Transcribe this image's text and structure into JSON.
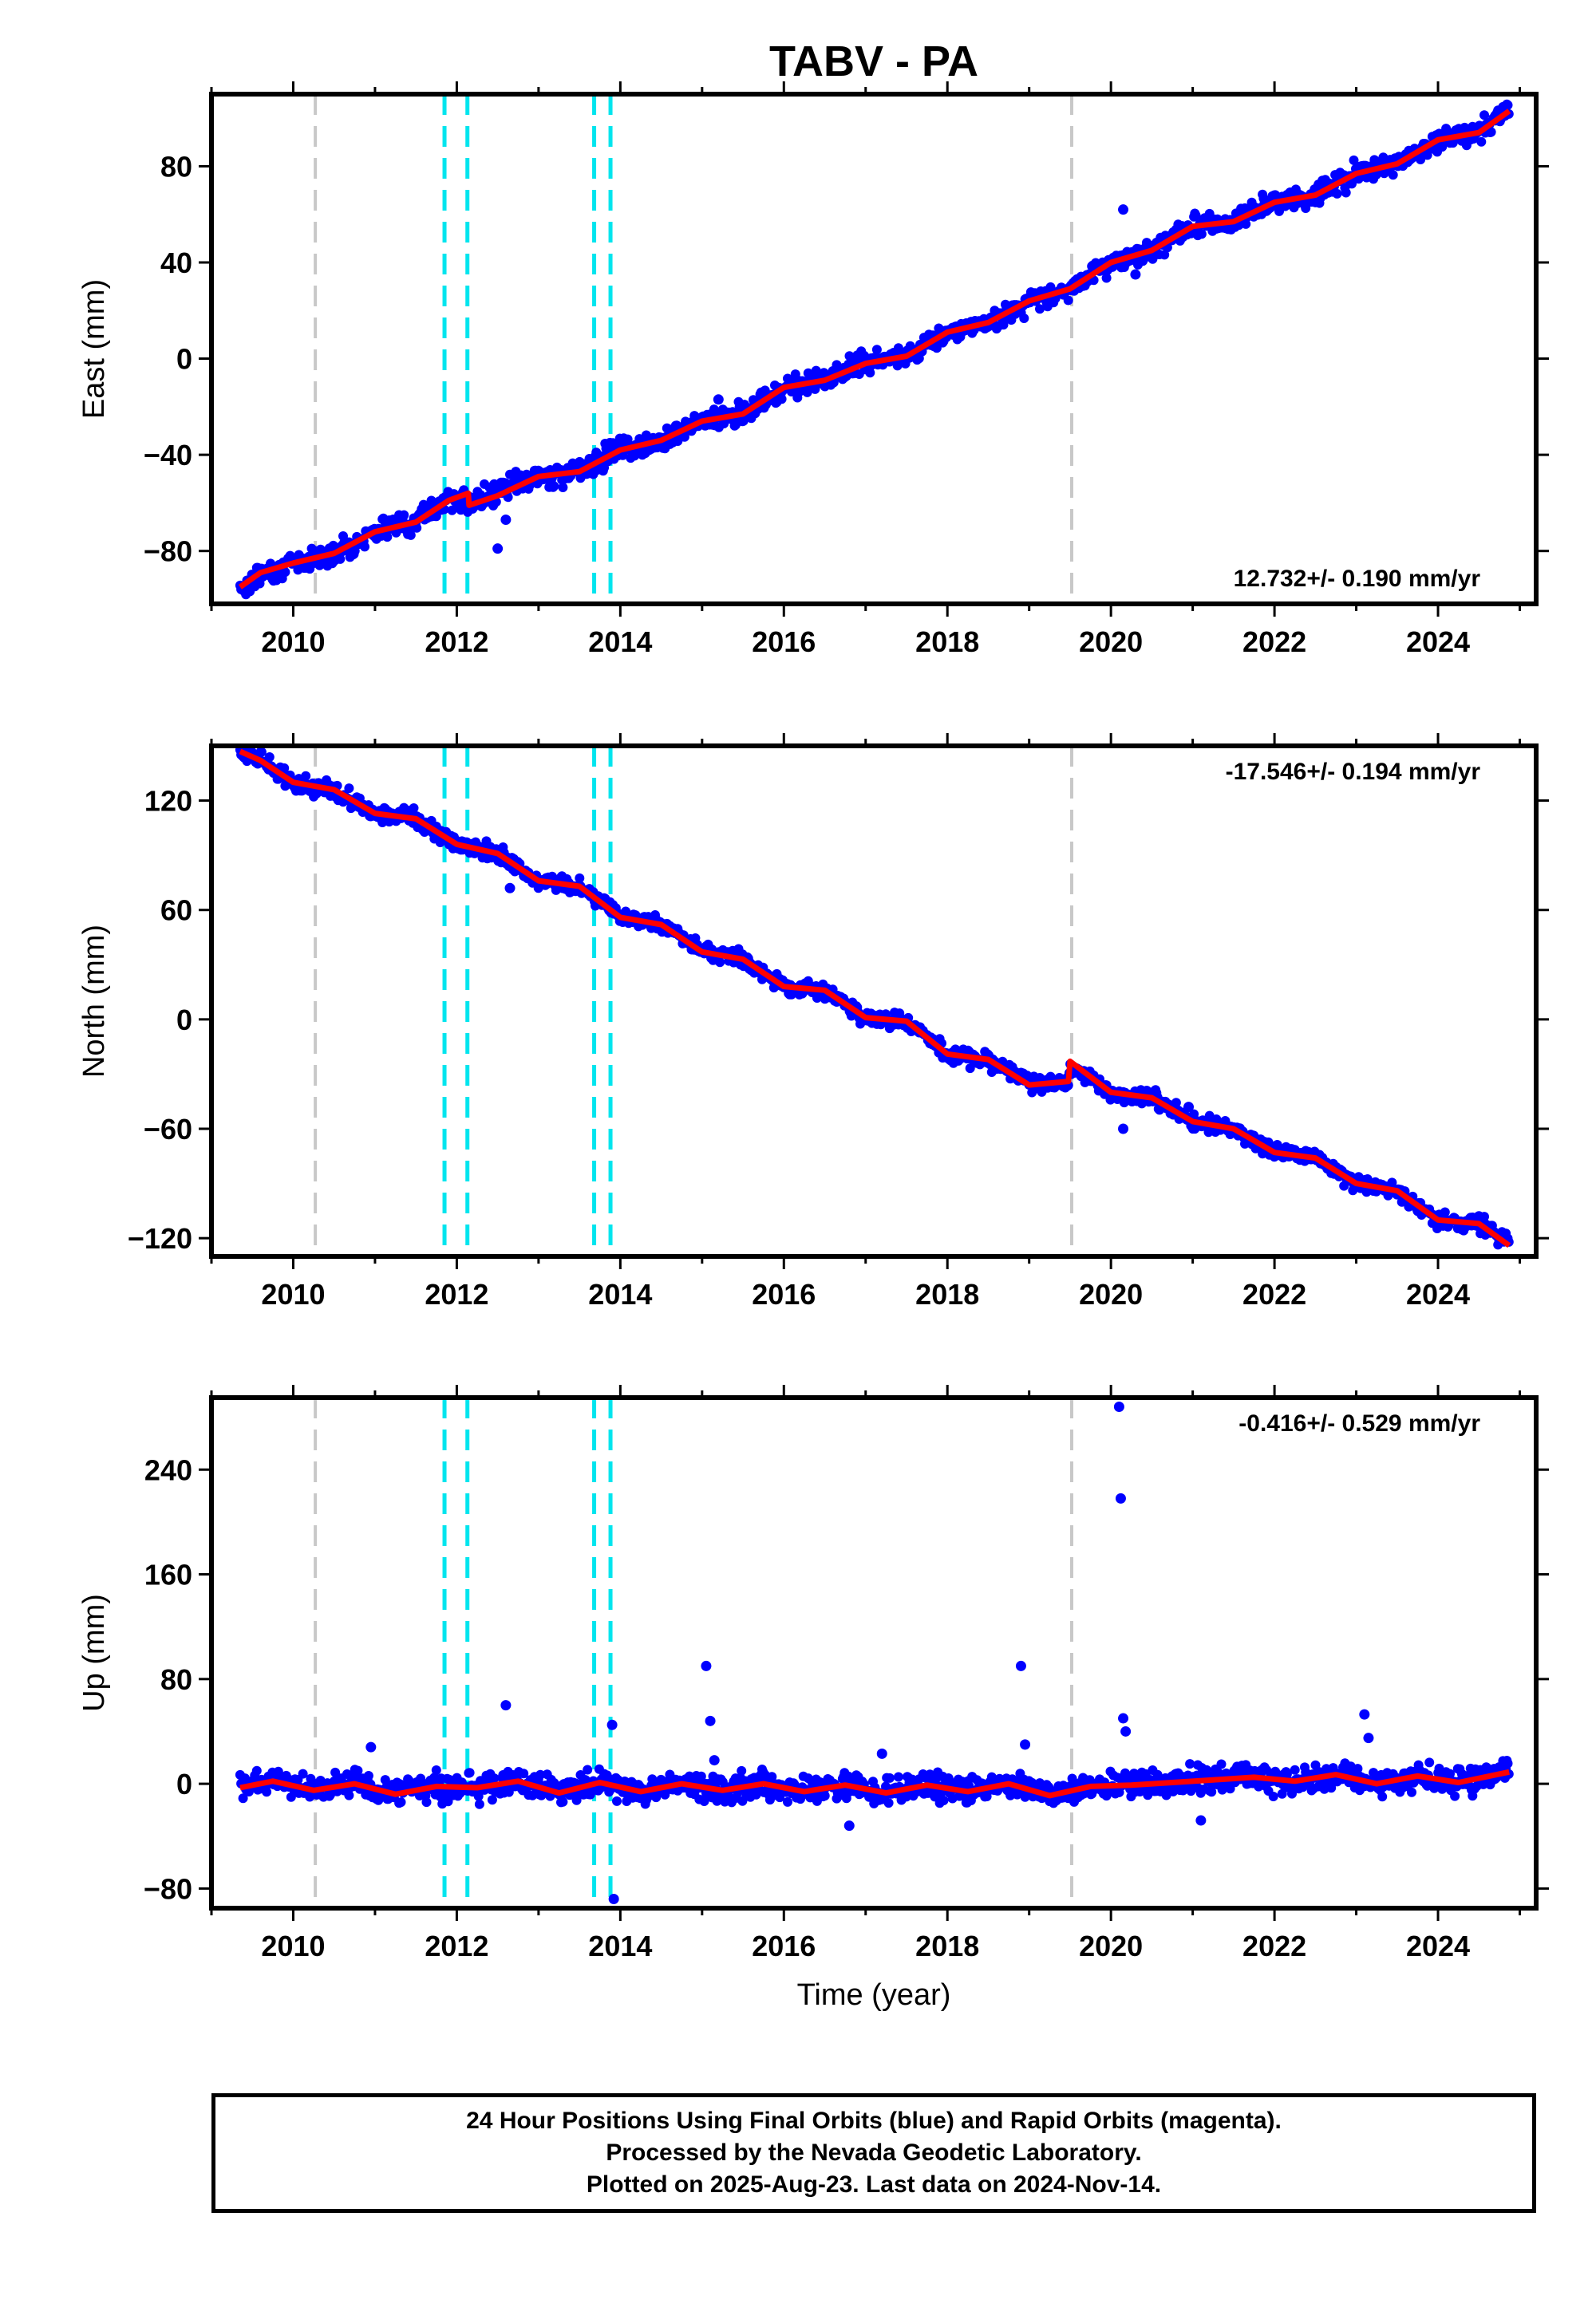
{
  "title": "TABV - PA",
  "xlabel": "Time (year)",
  "chart_data": [
    {
      "type": "scatter",
      "panel": "east",
      "ylabel": "East (mm)",
      "rate_label": "12.732+/- 0.190 mm/yr",
      "rate_position": "bottom-right",
      "xlim": [
        2009.0,
        2025.2
      ],
      "ylim": [
        -102,
        110
      ],
      "xticks": [
        2010,
        2012,
        2014,
        2016,
        2018,
        2020,
        2022,
        2024
      ],
      "yticks": [
        -80,
        -40,
        0,
        40,
        80
      ],
      "ytick_labels": [
        "−80",
        "−40",
        "0",
        "40",
        "80"
      ],
      "series": [
        {
          "role": "daily positions",
          "color": "#0000ff",
          "x": [
            2009.35,
            2009.6,
            2010.0,
            2010.5,
            2011.0,
            2011.5,
            2011.9,
            2012.1,
            2012.5,
            2013.0,
            2013.5,
            2014.0,
            2014.5,
            2015.0,
            2015.5,
            2016.0,
            2016.5,
            2017.0,
            2017.5,
            2018.0,
            2018.5,
            2019.0,
            2019.5,
            2020.0,
            2020.5,
            2021.0,
            2021.5,
            2022.0,
            2022.5,
            2023.0,
            2023.5,
            2024.0,
            2024.5,
            2024.87
          ],
          "y": [
            -96,
            -90,
            -85,
            -81,
            -72,
            -67,
            -58,
            -60,
            -56,
            -49,
            -47,
            -37,
            -34,
            -26,
            -23,
            -12,
            -9,
            -2,
            1,
            11,
            15,
            24,
            29,
            40,
            45,
            55,
            57,
            65,
            68,
            77,
            81,
            91,
            94,
            104
          ]
        },
        {
          "role": "outliers",
          "color": "#0000ff",
          "x": [
            2012.5,
            2012.6,
            2015.2,
            2020.15,
            2020.3
          ],
          "y": [
            -79,
            -67,
            -17,
            62,
            35
          ]
        },
        {
          "role": "model fit",
          "color": "#ff0000",
          "x": [
            2009.35,
            2009.6,
            2010.0,
            2010.5,
            2011.0,
            2011.5,
            2011.9,
            2012.14,
            2012.15,
            2012.5,
            2013.0,
            2013.5,
            2014.0,
            2014.5,
            2015.0,
            2015.5,
            2016.0,
            2016.5,
            2017.0,
            2017.5,
            2018.0,
            2018.5,
            2019.0,
            2019.5,
            2020.0,
            2020.5,
            2021.0,
            2021.5,
            2022.0,
            2022.5,
            2023.0,
            2023.5,
            2024.0,
            2024.5,
            2024.87
          ],
          "y": [
            -95,
            -89,
            -85,
            -81,
            -72,
            -68,
            -59,
            -56,
            -61,
            -57,
            -49,
            -47,
            -38,
            -34,
            -26,
            -23,
            -12,
            -9,
            -2,
            1,
            11,
            15,
            24,
            29,
            40,
            45,
            55,
            57,
            65,
            68,
            77,
            81,
            91,
            94,
            103
          ]
        }
      ]
    },
    {
      "type": "scatter",
      "panel": "north",
      "ylabel": "North (mm)",
      "rate_label": "-17.546+/- 0.194 mm/yr",
      "rate_position": "top-right",
      "xlim": [
        2009.0,
        2025.2
      ],
      "ylim": [
        -130,
        150
      ],
      "xticks": [
        2010,
        2012,
        2014,
        2016,
        2018,
        2020,
        2022,
        2024
      ],
      "yticks": [
        -120,
        -60,
        0,
        60,
        120
      ],
      "ytick_labels": [
        "−120",
        "−60",
        "0",
        "60",
        "120"
      ],
      "series": [
        {
          "role": "daily positions",
          "color": "#0000ff",
          "x": [
            2009.35,
            2009.6,
            2010.0,
            2010.5,
            2011.0,
            2011.5,
            2012.0,
            2012.5,
            2013.0,
            2013.5,
            2014.0,
            2014.5,
            2015.0,
            2015.5,
            2016.0,
            2016.5,
            2017.0,
            2017.5,
            2018.0,
            2018.5,
            2019.0,
            2019.48,
            2019.5,
            2020.0,
            2020.5,
            2021.0,
            2021.5,
            2022.0,
            2022.5,
            2023.0,
            2023.5,
            2024.0,
            2024.5,
            2024.87
          ],
          "y": [
            147,
            143,
            130,
            126,
            113,
            110,
            96,
            91,
            76,
            73,
            56,
            52,
            37,
            33,
            18,
            16,
            1,
            -1,
            -19,
            -22,
            -36,
            -35,
            -25,
            -40,
            -43,
            -56,
            -60,
            -73,
            -76,
            -90,
            -94,
            -110,
            -112,
            -123
          ]
        },
        {
          "role": "outliers",
          "color": "#0000ff",
          "x": [
            2012.65,
            2020.15,
            2020.95,
            2024.5
          ],
          "y": [
            72,
            -60,
            -48,
            -108
          ]
        },
        {
          "role": "model fit",
          "color": "#ff0000",
          "x": [
            2009.35,
            2009.6,
            2010.0,
            2010.5,
            2011.0,
            2011.5,
            2012.0,
            2012.5,
            2013.0,
            2013.5,
            2014.0,
            2014.5,
            2015.0,
            2015.5,
            2016.0,
            2016.5,
            2017.0,
            2017.5,
            2018.0,
            2018.5,
            2019.0,
            2019.48,
            2019.5,
            2020.0,
            2020.5,
            2021.0,
            2021.5,
            2022.0,
            2022.5,
            2023.0,
            2023.5,
            2024.0,
            2024.5,
            2024.87
          ],
          "y": [
            147,
            142,
            130,
            126,
            113,
            110,
            96,
            91,
            76,
            73,
            56,
            52,
            37,
            33,
            18,
            16,
            1,
            -1,
            -19,
            -22,
            -36,
            -34,
            -23,
            -40,
            -43,
            -56,
            -60,
            -73,
            -76,
            -90,
            -94,
            -110,
            -112,
            -124
          ]
        }
      ]
    },
    {
      "type": "scatter",
      "panel": "up",
      "ylabel": "Up (mm)",
      "rate_label": "-0.416+/- 0.529 mm/yr",
      "rate_position": "top-right",
      "xlim": [
        2009.0,
        2025.2
      ],
      "ylim": [
        -95,
        295
      ],
      "xticks": [
        2010,
        2012,
        2014,
        2016,
        2018,
        2020,
        2022,
        2024
      ],
      "yticks": [
        -80,
        0,
        80,
        160,
        240
      ],
      "ytick_labels": [
        "−80",
        "0",
        "80",
        "160",
        "240"
      ],
      "series": [
        {
          "role": "daily positions",
          "color": "#0000ff",
          "x": [
            2009.35,
            2009.75,
            2010.25,
            2010.75,
            2011.25,
            2011.75,
            2012.25,
            2012.75,
            2013.25,
            2013.75,
            2014.25,
            2014.75,
            2015.25,
            2015.75,
            2016.25,
            2016.75,
            2017.25,
            2017.75,
            2018.25,
            2018.75,
            2019.25,
            2019.75,
            2020.25,
            2020.75,
            2021.25,
            2021.75,
            2022.25,
            2022.75,
            2023.25,
            2023.75,
            2024.25,
            2024.87
          ],
          "y": [
            -3,
            2,
            -5,
            0,
            -8,
            -2,
            -3,
            2,
            -7,
            1,
            -6,
            0,
            -5,
            0,
            -6,
            -1,
            -7,
            -1,
            -6,
            0,
            -9,
            -2,
            -1,
            1,
            3,
            5,
            2,
            7,
            0,
            6,
            1,
            9
          ]
        },
        {
          "role": "outliers",
          "color": "#0000ff",
          "x": [
            2010.95,
            2012.6,
            2013.9,
            2013.92,
            2015.05,
            2015.1,
            2015.15,
            2016.8,
            2017.2,
            2018.9,
            2018.95,
            2020.1,
            2020.12,
            2020.15,
            2020.18,
            2021.1,
            2023.1,
            2023.15
          ],
          "y": [
            28,
            60,
            45,
            -88,
            90,
            48,
            18,
            -32,
            23,
            90,
            30,
            288,
            218,
            50,
            40,
            -28,
            53,
            35
          ]
        },
        {
          "role": "model fit",
          "color": "#ff0000",
          "x": [
            2009.35,
            2009.75,
            2010.25,
            2010.75,
            2011.25,
            2011.75,
            2012.25,
            2012.75,
            2013.25,
            2013.75,
            2014.25,
            2014.75,
            2015.25,
            2015.75,
            2016.25,
            2016.75,
            2017.25,
            2017.75,
            2018.25,
            2018.75,
            2019.25,
            2019.75,
            2020.25,
            2020.75,
            2021.25,
            2021.75,
            2022.25,
            2022.75,
            2023.25,
            2023.75,
            2024.25,
            2024.87
          ],
          "y": [
            -3,
            2,
            -5,
            0,
            -8,
            -2,
            -3,
            2,
            -7,
            1,
            -6,
            0,
            -5,
            0,
            -6,
            -1,
            -7,
            -1,
            -6,
            0,
            -9,
            -2,
            -1,
            1,
            3,
            5,
            2,
            7,
            0,
            6,
            1,
            9
          ]
        }
      ]
    }
  ],
  "event_lines": [
    {
      "x": 2010.27,
      "color": "#c8c8c8"
    },
    {
      "x": 2011.85,
      "color": "#00e5ee"
    },
    {
      "x": 2012.13,
      "color": "#00e5ee"
    },
    {
      "x": 2013.68,
      "color": "#00e5ee"
    },
    {
      "x": 2013.88,
      "color": "#00e5ee"
    },
    {
      "x": 2019.52,
      "color": "#c8c8c8"
    }
  ],
  "colors": {
    "data": "#0000ff",
    "fit": "#ff0000",
    "equipment_change": "#c8c8c8",
    "earthquake": "#00e5ee"
  },
  "caption": {
    "line1": "24 Hour Positions Using Final Orbits (blue) and Rapid Orbits (magenta).",
    "line2": "Processed by the Nevada Geodetic Laboratory.",
    "line3": "Plotted on 2025-Aug-23. Last data on 2024-Nov-14."
  }
}
